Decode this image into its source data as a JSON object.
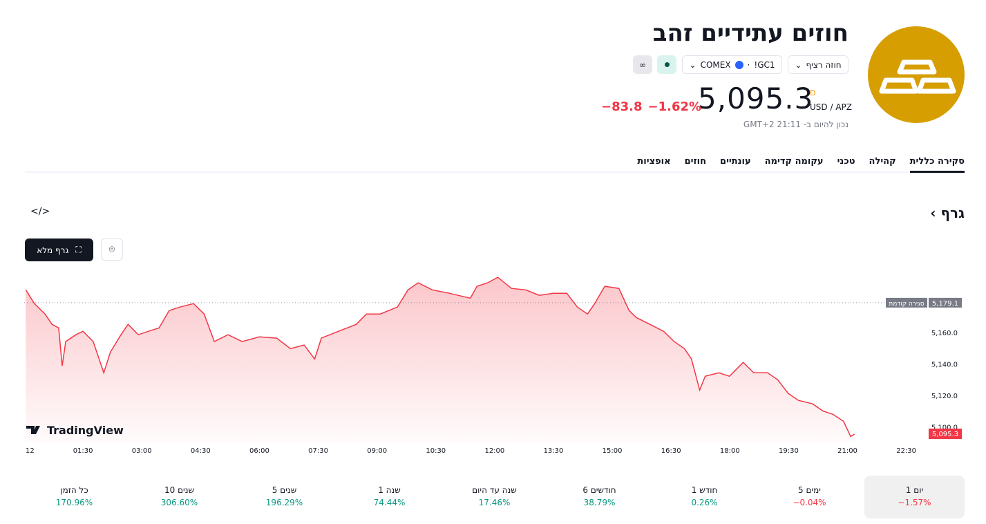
{
  "header": {
    "title": "חוזים עתידיים זהב",
    "contract": "חוזה רציף",
    "symbol": "GC1!",
    "exchange": "COMEX",
    "price": "5,095.3",
    "price_flag": "D",
    "currency": "USD / APZ",
    "change": "−83.8",
    "change_percent": "−1.62%",
    "timestamp": "נכון להיום ב- 21:11 GMT+2"
  },
  "tabs": [
    "סקירה כללית",
    "קהילה",
    "טכני",
    "עקומה קדימה",
    "עונתיים",
    "חוזים",
    "אופציות"
  ],
  "section_title": "גרף",
  "fullscreen_button": "גרף מלא",
  "chart_data": {
    "type": "area",
    "color": "#f23645",
    "x": [
      0.04,
      0.26,
      0.53,
      0.71,
      0.88,
      0.97,
      1.06,
      1.32,
      1.5,
      1.76,
      2.03,
      2.2,
      2.47,
      2.65,
      2.91,
      3.17,
      3.44,
      3.7,
      3.97,
      4.32,
      4.59,
      4.85,
      5.2,
      5.56,
      6.0,
      6.44,
      6.79,
      7.14,
      7.41,
      7.58,
      8.02,
      8.47,
      8.73,
      9.08,
      9.52,
      9.79,
      10.05,
      10.41,
      10.85,
      11.38,
      11.55,
      11.82,
      12.08,
      12.43,
      12.79,
      13.14,
      13.49,
      13.84,
      14.11,
      14.37,
      14.55,
      14.81,
      15.17,
      15.43,
      15.61,
      15.96,
      16.31,
      16.58,
      16.84,
      17.02,
      17.23,
      17.37,
      17.72,
      17.99,
      18.34,
      18.61,
      18.96,
      19.22,
      19.49,
      19.75,
      20.11,
      20.37,
      20.63,
      20.9,
      21.08,
      21.18
    ],
    "values": [
      5187.3,
      5178.5,
      5171.9,
      5165.3,
      5163,
      5138.8,
      5154.3,
      5158.7,
      5160.9,
      5154.3,
      5134.4,
      5147.6,
      5158.7,
      5165.3,
      5158.7,
      5160.9,
      5163,
      5174.1,
      5176.3,
      5178.5,
      5171.9,
      5154.3,
      5158.7,
      5154.3,
      5157.3,
      5156.5,
      5149.8,
      5152.1,
      5143.2,
      5156.5,
      5160.9,
      5165.3,
      5171.9,
      5171.9,
      5176.3,
      5187.3,
      5191.8,
      5187.3,
      5185.1,
      5182,
      5189.6,
      5191.8,
      5195.3,
      5188.2,
      5187.3,
      5183.8,
      5185.1,
      5185.1,
      5176.3,
      5171.9,
      5178.5,
      5189.6,
      5188.2,
      5174.1,
      5169.7,
      5165.3,
      5160.9,
      5154.3,
      5149.8,
      5143.2,
      5123.4,
      5132.2,
      5134.4,
      5132.2,
      5141,
      5134.4,
      5134.4,
      5130,
      5121.2,
      5116.8,
      5114.6,
      5110.1,
      5107.9,
      5103.5,
      5093.8,
      5095.3
    ],
    "xlim": [
      0,
      23
    ],
    "xticks": [
      {
        "value": 0,
        "label": "12"
      },
      {
        "value": 1.5,
        "label": "01:30"
      },
      {
        "value": 3,
        "label": "03:00"
      },
      {
        "value": 4.5,
        "label": "04:30"
      },
      {
        "value": 6,
        "label": "06:00"
      },
      {
        "value": 7.5,
        "label": "07:30"
      },
      {
        "value": 9,
        "label": "09:00"
      },
      {
        "value": 10.5,
        "label": "10:30"
      },
      {
        "value": 12,
        "label": "12:00"
      },
      {
        "value": 13.5,
        "label": "13:30"
      },
      {
        "value": 15,
        "label": "15:00"
      },
      {
        "value": 16.5,
        "label": "16:30"
      },
      {
        "value": 18,
        "label": "18:00"
      },
      {
        "value": 19.5,
        "label": "19:30"
      },
      {
        "value": 21,
        "label": "21:00"
      },
      {
        "value": 22.5,
        "label": "22:30"
      }
    ],
    "ylim": [
      5090,
      5198
    ],
    "yticks": [
      {
        "value": 5100,
        "label": "5,100.0"
      },
      {
        "value": 5120,
        "label": "5,120.0"
      },
      {
        "value": 5140,
        "label": "5,140.0"
      },
      {
        "value": 5160,
        "label": "5,160.0"
      }
    ],
    "previous_close": {
      "label": "סגירה קודמת",
      "value": 5179.1,
      "value_label": "5,179.1"
    },
    "last_value_label": "5,095.3",
    "watermark": "TradingView"
  },
  "periods": [
    {
      "label": "יום 1",
      "change": "−1.57%"
    },
    {
      "label": "5 ימים",
      "change": "−0.04%"
    },
    {
      "label": "חודש 1",
      "change": "0.26%"
    },
    {
      "label": "6 חודשים",
      "change": "38.79%"
    },
    {
      "label": "שנה עד היום",
      "change": "17.46%"
    },
    {
      "label": "שנה 1",
      "change": "74.44%"
    },
    {
      "label": "5 שנים",
      "change": "196.29%"
    },
    {
      "label": "10 שנים",
      "change": "306.60%"
    },
    {
      "label": "כל הזמן",
      "change": "170.96%"
    }
  ]
}
